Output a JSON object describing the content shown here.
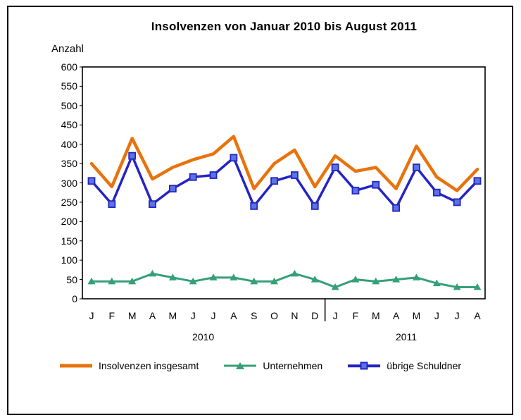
{
  "title": "Insolvenzen von Januar 2010 bis August 2011",
  "chart_data": {
    "type": "line",
    "title": "Insolvenzen von Januar 2010 bis August 2011",
    "xlabel": "",
    "ylabel": "Anzahl",
    "ylim": [
      0,
      600
    ],
    "ytick_step": 50,
    "yticks": [
      600,
      550,
      500,
      450,
      400,
      350,
      300,
      250,
      200,
      150,
      100,
      50,
      0
    ],
    "grid": false,
    "legend_position": "bottom",
    "categories": [
      "J",
      "F",
      "M",
      "A",
      "M",
      "J",
      "J",
      "A",
      "S",
      "O",
      "N",
      "D",
      "J",
      "F",
      "M",
      "A",
      "M",
      "J",
      "J",
      "A"
    ],
    "year_groups": [
      {
        "label": "2010",
        "start_index": 0,
        "end_index": 11
      },
      {
        "label": "2011",
        "start_index": 12,
        "end_index": 19
      }
    ],
    "series": [
      {
        "name": "Insolvenzen insgesamt",
        "color": "#E8730C",
        "marker": "none",
        "values": [
          350,
          290,
          415,
          310,
          340,
          360,
          375,
          420,
          285,
          350,
          385,
          290,
          370,
          330,
          340,
          285,
          395,
          315,
          280,
          335
        ]
      },
      {
        "name": "Unternehmen",
        "color": "#35A077",
        "marker": "triangle",
        "values": [
          45,
          45,
          45,
          65,
          55,
          45,
          55,
          55,
          45,
          45,
          65,
          50,
          30,
          50,
          45,
          50,
          55,
          40,
          30,
          30
        ]
      },
      {
        "name": "übrige Schuldner",
        "color": "#2424C4",
        "marker": "square",
        "marker_fill": "#5B74E3",
        "values": [
          305,
          245,
          370,
          245,
          285,
          315,
          320,
          365,
          240,
          305,
          320,
          240,
          340,
          280,
          295,
          235,
          340,
          275,
          250,
          305
        ]
      }
    ]
  }
}
